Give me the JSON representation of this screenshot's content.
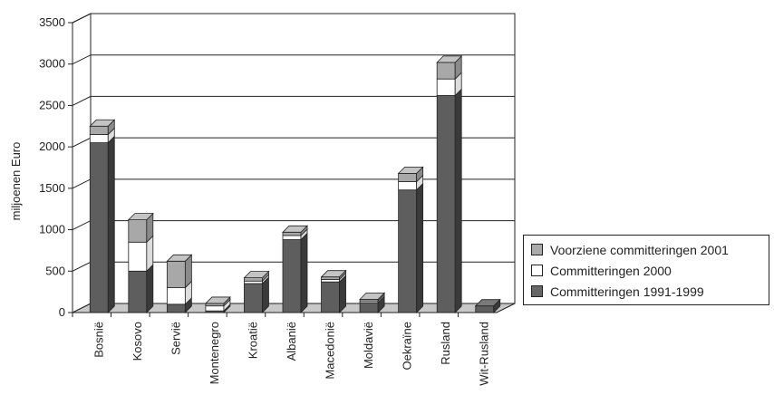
{
  "chart_data": {
    "type": "bar",
    "stacked": true,
    "three_d": true,
    "ylabel": "miljoenen Euro",
    "xlabel": "",
    "ylim": [
      0,
      3500
    ],
    "yticks": [
      0,
      500,
      1000,
      1500,
      2000,
      2500,
      3000,
      3500
    ],
    "grid": true,
    "legend_position": "right",
    "categories": [
      "Bosnië",
      "Kosovo",
      "Servië",
      "Montenegro",
      "Kroatië",
      "Albanië",
      "Macedonië",
      "Moldavië",
      "Oekraïne",
      "Rusland",
      "Wit-Rusland"
    ],
    "series": [
      {
        "name": "Committeringen 1991-1999",
        "color": "#666666",
        "values": [
          2050,
          500,
          100,
          20,
          350,
          880,
          370,
          120,
          1480,
          2620,
          80
        ]
      },
      {
        "name": "Committeringen 2000",
        "color": "#ffffff",
        "values": [
          100,
          350,
          200,
          60,
          30,
          50,
          30,
          20,
          100,
          200,
          0
        ]
      },
      {
        "name": "Voorziene committeringen 2001",
        "color": "#aaaaaa",
        "values": [
          100,
          270,
          320,
          30,
          40,
          40,
          30,
          20,
          100,
          200,
          0
        ]
      }
    ]
  }
}
